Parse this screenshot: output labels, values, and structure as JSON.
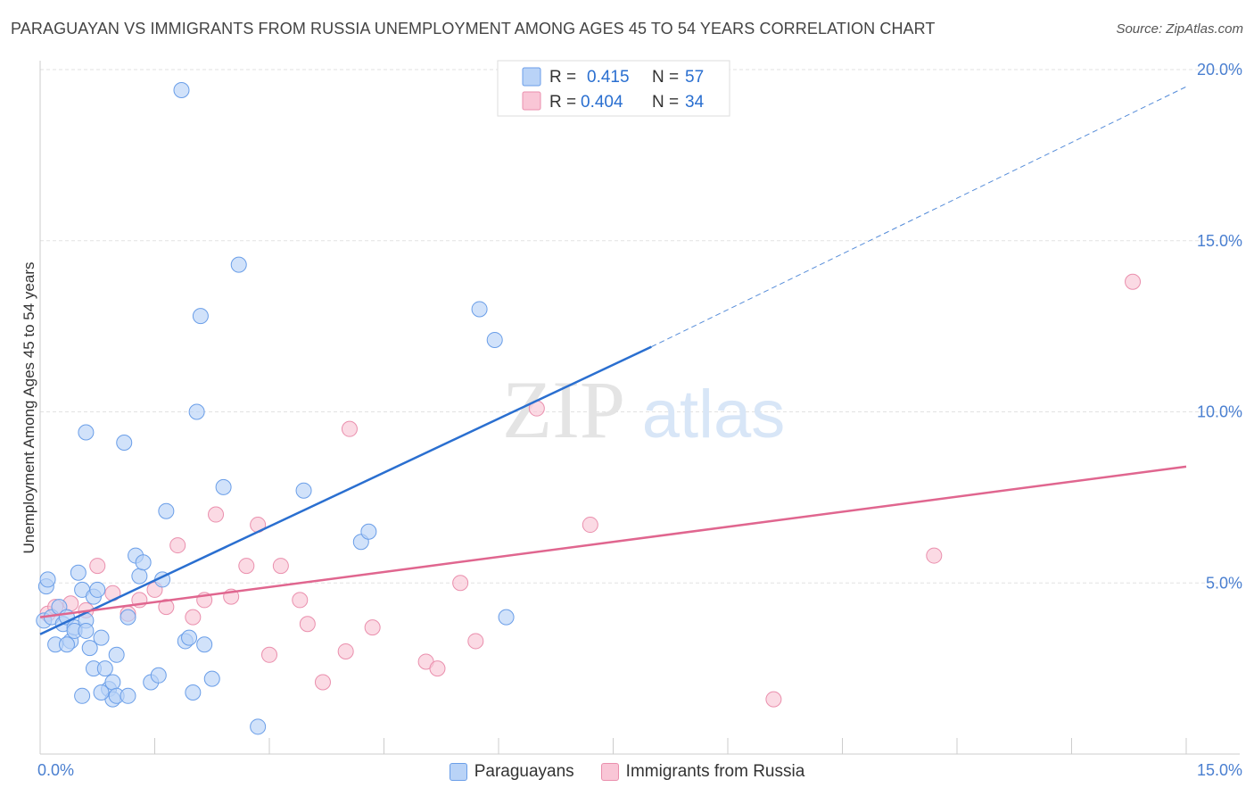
{
  "title": "PARAGUAYAN VS IMMIGRANTS FROM RUSSIA UNEMPLOYMENT AMONG AGES 45 TO 54 YEARS CORRELATION CHART",
  "source": "Source: ZipAtlas.com",
  "watermark": {
    "zip": "ZIP",
    "atlas": "atlas"
  },
  "legend": {
    "r_label": "R =",
    "n_label": "N =",
    "rows": [
      {
        "r": "0.415",
        "n": "57",
        "fill": "#b9d3f7",
        "stroke": "#6a9ee8"
      },
      {
        "r": "0.404",
        "n": "34",
        "fill": "#f9c6d6",
        "stroke": "#ea8fad"
      }
    ]
  },
  "bottom_legend": [
    {
      "label": "Paraguayans",
      "fill": "#b9d3f7",
      "stroke": "#6a9ee8"
    },
    {
      "label": "Immigrants from Russia",
      "fill": "#f9c6d6",
      "stroke": "#ea8fad"
    }
  ],
  "chart_data": {
    "type": "scatter",
    "title": "PARAGUAYAN VS IMMIGRANTS FROM RUSSIA UNEMPLOYMENT AMONG AGES 45 TO 54 YEARS CORRELATION CHART",
    "xlabel": "",
    "ylabel": "Unemployment Among Ages 45 to 54 years",
    "xlim": [
      0,
      15
    ],
    "ylim": [
      0,
      20
    ],
    "x_tick_labels": [
      {
        "v": 0,
        "label": "0.0%"
      },
      {
        "v": 15,
        "label": "15.0%"
      }
    ],
    "y_tick_labels": [
      {
        "v": 5,
        "label": "5.0%"
      },
      {
        "v": 10,
        "label": "10.0%"
      },
      {
        "v": 15,
        "label": "15.0%"
      },
      {
        "v": 20,
        "label": "20.0%"
      }
    ],
    "grid": true,
    "legend_placement": "top-center",
    "series": [
      {
        "name": "Paraguayans",
        "color": "#6a9ee8",
        "fill": "#b9d3f7",
        "line_color": "#2a6fd0",
        "trend": {
          "x0": 0,
          "y0": 3.5,
          "x1": 8.0,
          "y1": 11.9,
          "dash_to_x": 15,
          "dash_to_y": 19.5
        },
        "points": [
          [
            0.05,
            3.9
          ],
          [
            0.08,
            4.9
          ],
          [
            0.1,
            5.1
          ],
          [
            0.15,
            4.0
          ],
          [
            0.2,
            3.2
          ],
          [
            0.25,
            4.3
          ],
          [
            0.3,
            3.8
          ],
          [
            0.35,
            4.0
          ],
          [
            0.4,
            3.3
          ],
          [
            0.45,
            3.7
          ],
          [
            0.5,
            5.3
          ],
          [
            0.55,
            4.8
          ],
          [
            0.6,
            3.9
          ],
          [
            0.6,
            9.4
          ],
          [
            0.65,
            3.1
          ],
          [
            0.7,
            4.6
          ],
          [
            0.75,
            4.8
          ],
          [
            0.8,
            3.4
          ],
          [
            0.7,
            2.5
          ],
          [
            0.85,
            2.5
          ],
          [
            0.9,
            1.9
          ],
          [
            0.95,
            1.6
          ],
          [
            0.95,
            2.1
          ],
          [
            1.0,
            1.7
          ],
          [
            0.55,
            1.7
          ],
          [
            0.8,
            1.8
          ],
          [
            1.0,
            2.9
          ],
          [
            1.1,
            9.1
          ],
          [
            1.15,
            1.7
          ],
          [
            1.15,
            4.0
          ],
          [
            1.25,
            5.8
          ],
          [
            1.3,
            5.2
          ],
          [
            1.35,
            5.6
          ],
          [
            1.45,
            2.1
          ],
          [
            1.55,
            2.3
          ],
          [
            1.6,
            5.1
          ],
          [
            1.65,
            7.1
          ],
          [
            1.85,
            19.4
          ],
          [
            1.9,
            3.3
          ],
          [
            1.95,
            3.4
          ],
          [
            2.0,
            1.8
          ],
          [
            2.05,
            10.0
          ],
          [
            2.1,
            12.8
          ],
          [
            2.15,
            3.2
          ],
          [
            2.25,
            2.2
          ],
          [
            2.4,
            7.8
          ],
          [
            2.6,
            14.3
          ],
          [
            2.85,
            0.8
          ],
          [
            3.45,
            7.7
          ],
          [
            4.2,
            6.2
          ],
          [
            4.3,
            6.5
          ],
          [
            5.75,
            13.0
          ],
          [
            5.95,
            12.1
          ],
          [
            6.1,
            4.0
          ],
          [
            0.35,
            3.2
          ],
          [
            0.45,
            3.6
          ],
          [
            0.6,
            3.6
          ]
        ]
      },
      {
        "name": "Immigrants from Russia",
        "color": "#ea8fad",
        "fill": "#f9c6d6",
        "line_color": "#e0668f",
        "trend": {
          "x0": 0,
          "y0": 4.0,
          "x1": 15,
          "y1": 8.4
        },
        "points": [
          [
            0.1,
            4.1
          ],
          [
            0.2,
            4.3
          ],
          [
            0.4,
            4.4
          ],
          [
            0.6,
            4.2
          ],
          [
            0.75,
            5.5
          ],
          [
            0.95,
            4.7
          ],
          [
            1.15,
            4.1
          ],
          [
            1.3,
            4.5
          ],
          [
            1.5,
            4.8
          ],
          [
            1.65,
            4.3
          ],
          [
            1.8,
            6.1
          ],
          [
            2.0,
            4.0
          ],
          [
            2.15,
            4.5
          ],
          [
            2.3,
            7.0
          ],
          [
            2.5,
            4.6
          ],
          [
            2.7,
            5.5
          ],
          [
            2.85,
            6.7
          ],
          [
            3.0,
            2.9
          ],
          [
            3.15,
            5.5
          ],
          [
            3.4,
            4.5
          ],
          [
            3.5,
            3.8
          ],
          [
            3.7,
            2.1
          ],
          [
            4.0,
            3.0
          ],
          [
            4.05,
            9.5
          ],
          [
            4.35,
            3.7
          ],
          [
            5.05,
            2.7
          ],
          [
            5.2,
            2.5
          ],
          [
            5.5,
            5.0
          ],
          [
            5.7,
            3.3
          ],
          [
            6.5,
            10.1
          ],
          [
            7.2,
            6.7
          ],
          [
            9.6,
            1.6
          ],
          [
            11.7,
            5.8
          ],
          [
            14.3,
            13.8
          ]
        ]
      }
    ]
  }
}
